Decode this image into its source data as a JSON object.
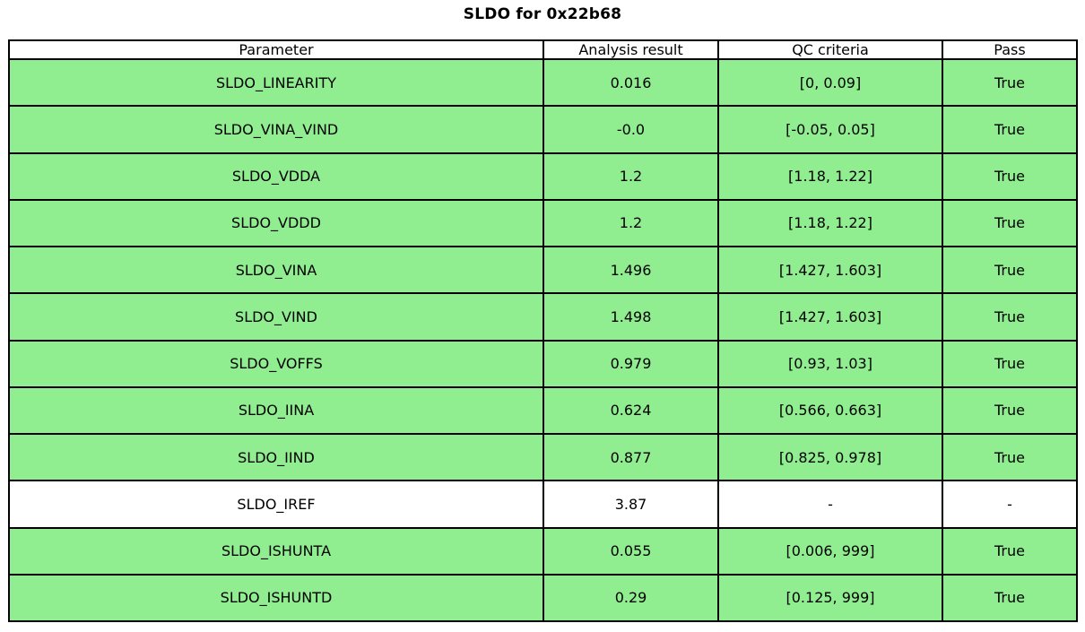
{
  "title": "SLDO for 0x22b68",
  "colors": {
    "pass_green": "#90EE90",
    "border": "#000000",
    "background": "#FFFFFF",
    "text": "#000000"
  },
  "chart_data": {
    "type": "table",
    "title": "SLDO for 0x22b68",
    "columns": [
      "Parameter",
      "Analysis result",
      "QC criteria",
      "Pass"
    ],
    "rows": [
      {
        "parameter": "SLDO_LINEARITY",
        "analysis_result": "0.016",
        "qc_criteria": "[0, 0.09]",
        "pass": "True",
        "highlighted": true
      },
      {
        "parameter": "SLDO_VINA_VIND",
        "analysis_result": "-0.0",
        "qc_criteria": "[-0.05, 0.05]",
        "pass": "True",
        "highlighted": true
      },
      {
        "parameter": "SLDO_VDDA",
        "analysis_result": "1.2",
        "qc_criteria": "[1.18, 1.22]",
        "pass": "True",
        "highlighted": true
      },
      {
        "parameter": "SLDO_VDDD",
        "analysis_result": "1.2",
        "qc_criteria": "[1.18, 1.22]",
        "pass": "True",
        "highlighted": true
      },
      {
        "parameter": "SLDO_VINA",
        "analysis_result": "1.496",
        "qc_criteria": "[1.427, 1.603]",
        "pass": "True",
        "highlighted": true
      },
      {
        "parameter": "SLDO_VIND",
        "analysis_result": "1.498",
        "qc_criteria": "[1.427, 1.603]",
        "pass": "True",
        "highlighted": true
      },
      {
        "parameter": "SLDO_VOFFS",
        "analysis_result": "0.979",
        "qc_criteria": "[0.93, 1.03]",
        "pass": "True",
        "highlighted": true
      },
      {
        "parameter": "SLDO_IINA",
        "analysis_result": "0.624",
        "qc_criteria": "[0.566, 0.663]",
        "pass": "True",
        "highlighted": true
      },
      {
        "parameter": "SLDO_IIND",
        "analysis_result": "0.877",
        "qc_criteria": "[0.825, 0.978]",
        "pass": "True",
        "highlighted": true
      },
      {
        "parameter": "SLDO_IREF",
        "analysis_result": "3.87",
        "qc_criteria": "-",
        "pass": "-",
        "highlighted": false
      },
      {
        "parameter": "SLDO_ISHUNTA",
        "analysis_result": "0.055",
        "qc_criteria": "[0.006, 999]",
        "pass": "True",
        "highlighted": true
      },
      {
        "parameter": "SLDO_ISHUNTD",
        "analysis_result": "0.29",
        "qc_criteria": "[0.125, 999]",
        "pass": "True",
        "highlighted": true
      }
    ]
  }
}
